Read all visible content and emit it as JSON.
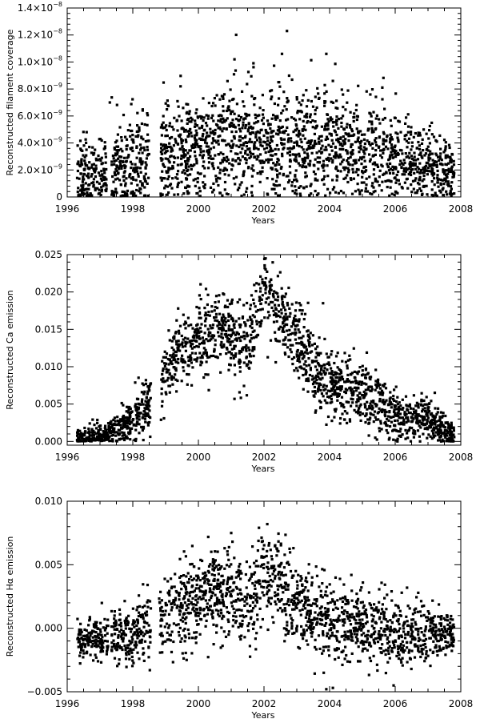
{
  "chart_data": [
    {
      "type": "scatter",
      "ylabel": "Reconstructed filament coverage",
      "xlabel": "Years",
      "xlim": [
        1996,
        2008
      ],
      "ylim": [
        0,
        1.4e-08
      ],
      "x_ticks": [
        "1996",
        "1998",
        "2000",
        "2002",
        "2004",
        "2006",
        "2008"
      ],
      "y_ticks": [
        {
          "value": 0,
          "base": "0",
          "exp": ""
        },
        {
          "value": 2e-09,
          "base": "2.0×10",
          "exp": "−9"
        },
        {
          "value": 4e-09,
          "base": "4.0×10",
          "exp": "−9"
        },
        {
          "value": 6e-09,
          "base": "6.0×10",
          "exp": "−9"
        },
        {
          "value": 8e-09,
          "base": "8.0×10",
          "exp": "−9"
        },
        {
          "value": 1e-08,
          "base": "1.0×10",
          "exp": "−8"
        },
        {
          "value": 1.2e-08,
          "base": "1.2×10",
          "exp": "−8"
        },
        {
          "value": 1.4e-08,
          "base": "1.4×10",
          "exp": "−8"
        }
      ],
      "trend": {
        "x": [
          1996.3,
          1997.0,
          1997.5,
          1998.0,
          1998.5,
          1999.0,
          1999.5,
          2000.0,
          2000.5,
          2001.0,
          2001.5,
          2002.0,
          2002.5,
          2003.0,
          2003.5,
          2004.0,
          2004.5,
          2005.0,
          2005.5,
          2006.0,
          2006.5,
          2007.0,
          2007.5,
          2007.8
        ],
        "y": [
          1.5e-09,
          1.7e-09,
          2e-09,
          2.3e-09,
          2.8e-09,
          3.2e-09,
          3.6e-09,
          3.8e-09,
          4e-09,
          4.2e-09,
          4.3e-09,
          4.3e-09,
          4.2e-09,
          4e-09,
          3.8e-09,
          3.6e-09,
          3.4e-09,
          3.3e-09,
          3.1e-09,
          2.9e-09,
          2.6e-09,
          2.2e-09,
          1.9e-09,
          1.8e-09
        ]
      },
      "spread": [
        1.4e-09,
        1.5e-09,
        1.7e-09,
        1.8e-09,
        1.9e-09,
        2e-09,
        2e-09,
        2e-09,
        2e-09,
        2e-09,
        2e-09,
        2e-09,
        2e-09,
        2e-09,
        2e-09,
        2e-09,
        1.9e-09,
        1.9e-09,
        1.8e-09,
        1.7e-09,
        1.6e-09,
        1.4e-09,
        1.2e-09,
        1.1e-09
      ],
      "gaps": [
        [
          1997.2,
          1997.35
        ],
        [
          1998.5,
          1998.85
        ]
      ],
      "outliers": [
        {
          "x": 2002.7,
          "y": 1.23e-08
        },
        {
          "x": 2003.9,
          "y": 1.06e-08
        },
        {
          "x": 2002.55,
          "y": 1.06e-08
        },
        {
          "x": 2001.1,
          "y": 1.02e-08
        },
        {
          "x": 1997.3,
          "y": 7e-09
        }
      ],
      "n_points": 2200,
      "grid": false
    },
    {
      "type": "scatter",
      "ylabel": "Reconstructed Ca emission",
      "xlabel": "Years",
      "xlim": [
        1996,
        2008
      ],
      "ylim": [
        -0.0005,
        0.025
      ],
      "x_ticks": [
        "1996",
        "1998",
        "2000",
        "2002",
        "2004",
        "2006",
        "2008"
      ],
      "y_ticks": [
        {
          "value": 0,
          "base": "0.000",
          "exp": ""
        },
        {
          "value": 0.005,
          "base": "0.005",
          "exp": ""
        },
        {
          "value": 0.01,
          "base": "0.010",
          "exp": ""
        },
        {
          "value": 0.015,
          "base": "0.015",
          "exp": ""
        },
        {
          "value": 0.02,
          "base": "0.020",
          "exp": ""
        },
        {
          "value": 0.025,
          "base": "0.025",
          "exp": ""
        }
      ],
      "trend": {
        "x": [
          1996.3,
          1996.8,
          1997.2,
          1997.5,
          1998.0,
          1998.5,
          1999.0,
          1999.5,
          2000.0,
          2000.5,
          2001.0,
          2001.5,
          2002.0,
          2002.2,
          2002.5,
          2003.0,
          2003.5,
          2004.0,
          2004.5,
          2005.0,
          2005.5,
          2006.0,
          2006.5,
          2007.0,
          2007.5,
          2007.8
        ],
        "y": [
          0.0005,
          0.0005,
          0.0008,
          0.0015,
          0.003,
          0.005,
          0.009,
          0.012,
          0.014,
          0.015,
          0.014,
          0.013,
          0.021,
          0.019,
          0.017,
          0.014,
          0.01,
          0.008,
          0.007,
          0.0065,
          0.005,
          0.0035,
          0.003,
          0.003,
          0.0015,
          0.0008
        ]
      },
      "spread": [
        0.0008,
        0.0008,
        0.001,
        0.0012,
        0.0015,
        0.002,
        0.0025,
        0.0025,
        0.0025,
        0.0025,
        0.0025,
        0.0025,
        0.0025,
        0.0025,
        0.0025,
        0.0025,
        0.0025,
        0.002,
        0.002,
        0.002,
        0.002,
        0.0018,
        0.0015,
        0.0015,
        0.0012,
        0.0008
      ],
      "gaps": [
        [
          1998.55,
          1998.85
        ]
      ],
      "outliers": [
        {
          "x": 2002.05,
          "y": 0.0245
        },
        {
          "x": 2003.8,
          "y": 0.0185
        }
      ],
      "n_points": 2000,
      "grid": false
    },
    {
      "type": "scatter",
      "ylabel": "Reconstructed Hα emission",
      "xlabel": "Years",
      "xlim": [
        1996,
        2008
      ],
      "ylim": [
        -0.005,
        0.01
      ],
      "x_ticks": [
        "1996",
        "1998",
        "2000",
        "2002",
        "2004",
        "2006",
        "2008"
      ],
      "y_ticks": [
        {
          "value": -0.005,
          "base": "−0.005",
          "exp": ""
        },
        {
          "value": 0,
          "base": "0.000",
          "exp": ""
        },
        {
          "value": 0.005,
          "base": "0.005",
          "exp": ""
        },
        {
          "value": 0.01,
          "base": "0.010",
          "exp": ""
        }
      ],
      "trend": {
        "x": [
          1996.3,
          1997.0,
          1997.5,
          1998.0,
          1998.5,
          1999.0,
          1999.5,
          2000.0,
          2000.5,
          2001.0,
          2001.5,
          2002.0,
          2002.3,
          2002.5,
          2003.0,
          2003.5,
          2004.0,
          2004.5,
          2005.0,
          2005.5,
          2006.0,
          2006.5,
          2007.0,
          2007.5,
          2007.8
        ],
        "y": [
          -0.001,
          -0.001,
          -0.0008,
          -0.0005,
          0.0,
          0.001,
          0.0018,
          0.0025,
          0.003,
          0.0025,
          0.002,
          0.0045,
          0.004,
          0.0035,
          0.002,
          0.001,
          0.0005,
          0.0003,
          0.0002,
          0.0,
          -0.0004,
          -0.0006,
          -0.0004,
          -0.0004,
          -0.0006
        ]
      },
      "spread": [
        0.0008,
        0.0008,
        0.001,
        0.0012,
        0.0014,
        0.0015,
        0.0016,
        0.0017,
        0.0017,
        0.0017,
        0.0017,
        0.0018,
        0.0018,
        0.0018,
        0.0017,
        0.0016,
        0.0015,
        0.0015,
        0.0014,
        0.0014,
        0.0014,
        0.0012,
        0.0011,
        0.0009,
        0.0007
      ],
      "gaps": [
        [
          1997.25,
          1997.35
        ],
        [
          1998.55,
          1998.8
        ]
      ],
      "outliers": [
        {
          "x": 2002.1,
          "y": 0.0082
        },
        {
          "x": 2001.0,
          "y": 0.0075
        },
        {
          "x": 2003.9,
          "y": -0.0048
        },
        {
          "x": 2005.95,
          "y": -0.0045
        },
        {
          "x": 2004.1,
          "y": -0.0047
        }
      ],
      "n_points": 1900,
      "grid": false
    }
  ]
}
